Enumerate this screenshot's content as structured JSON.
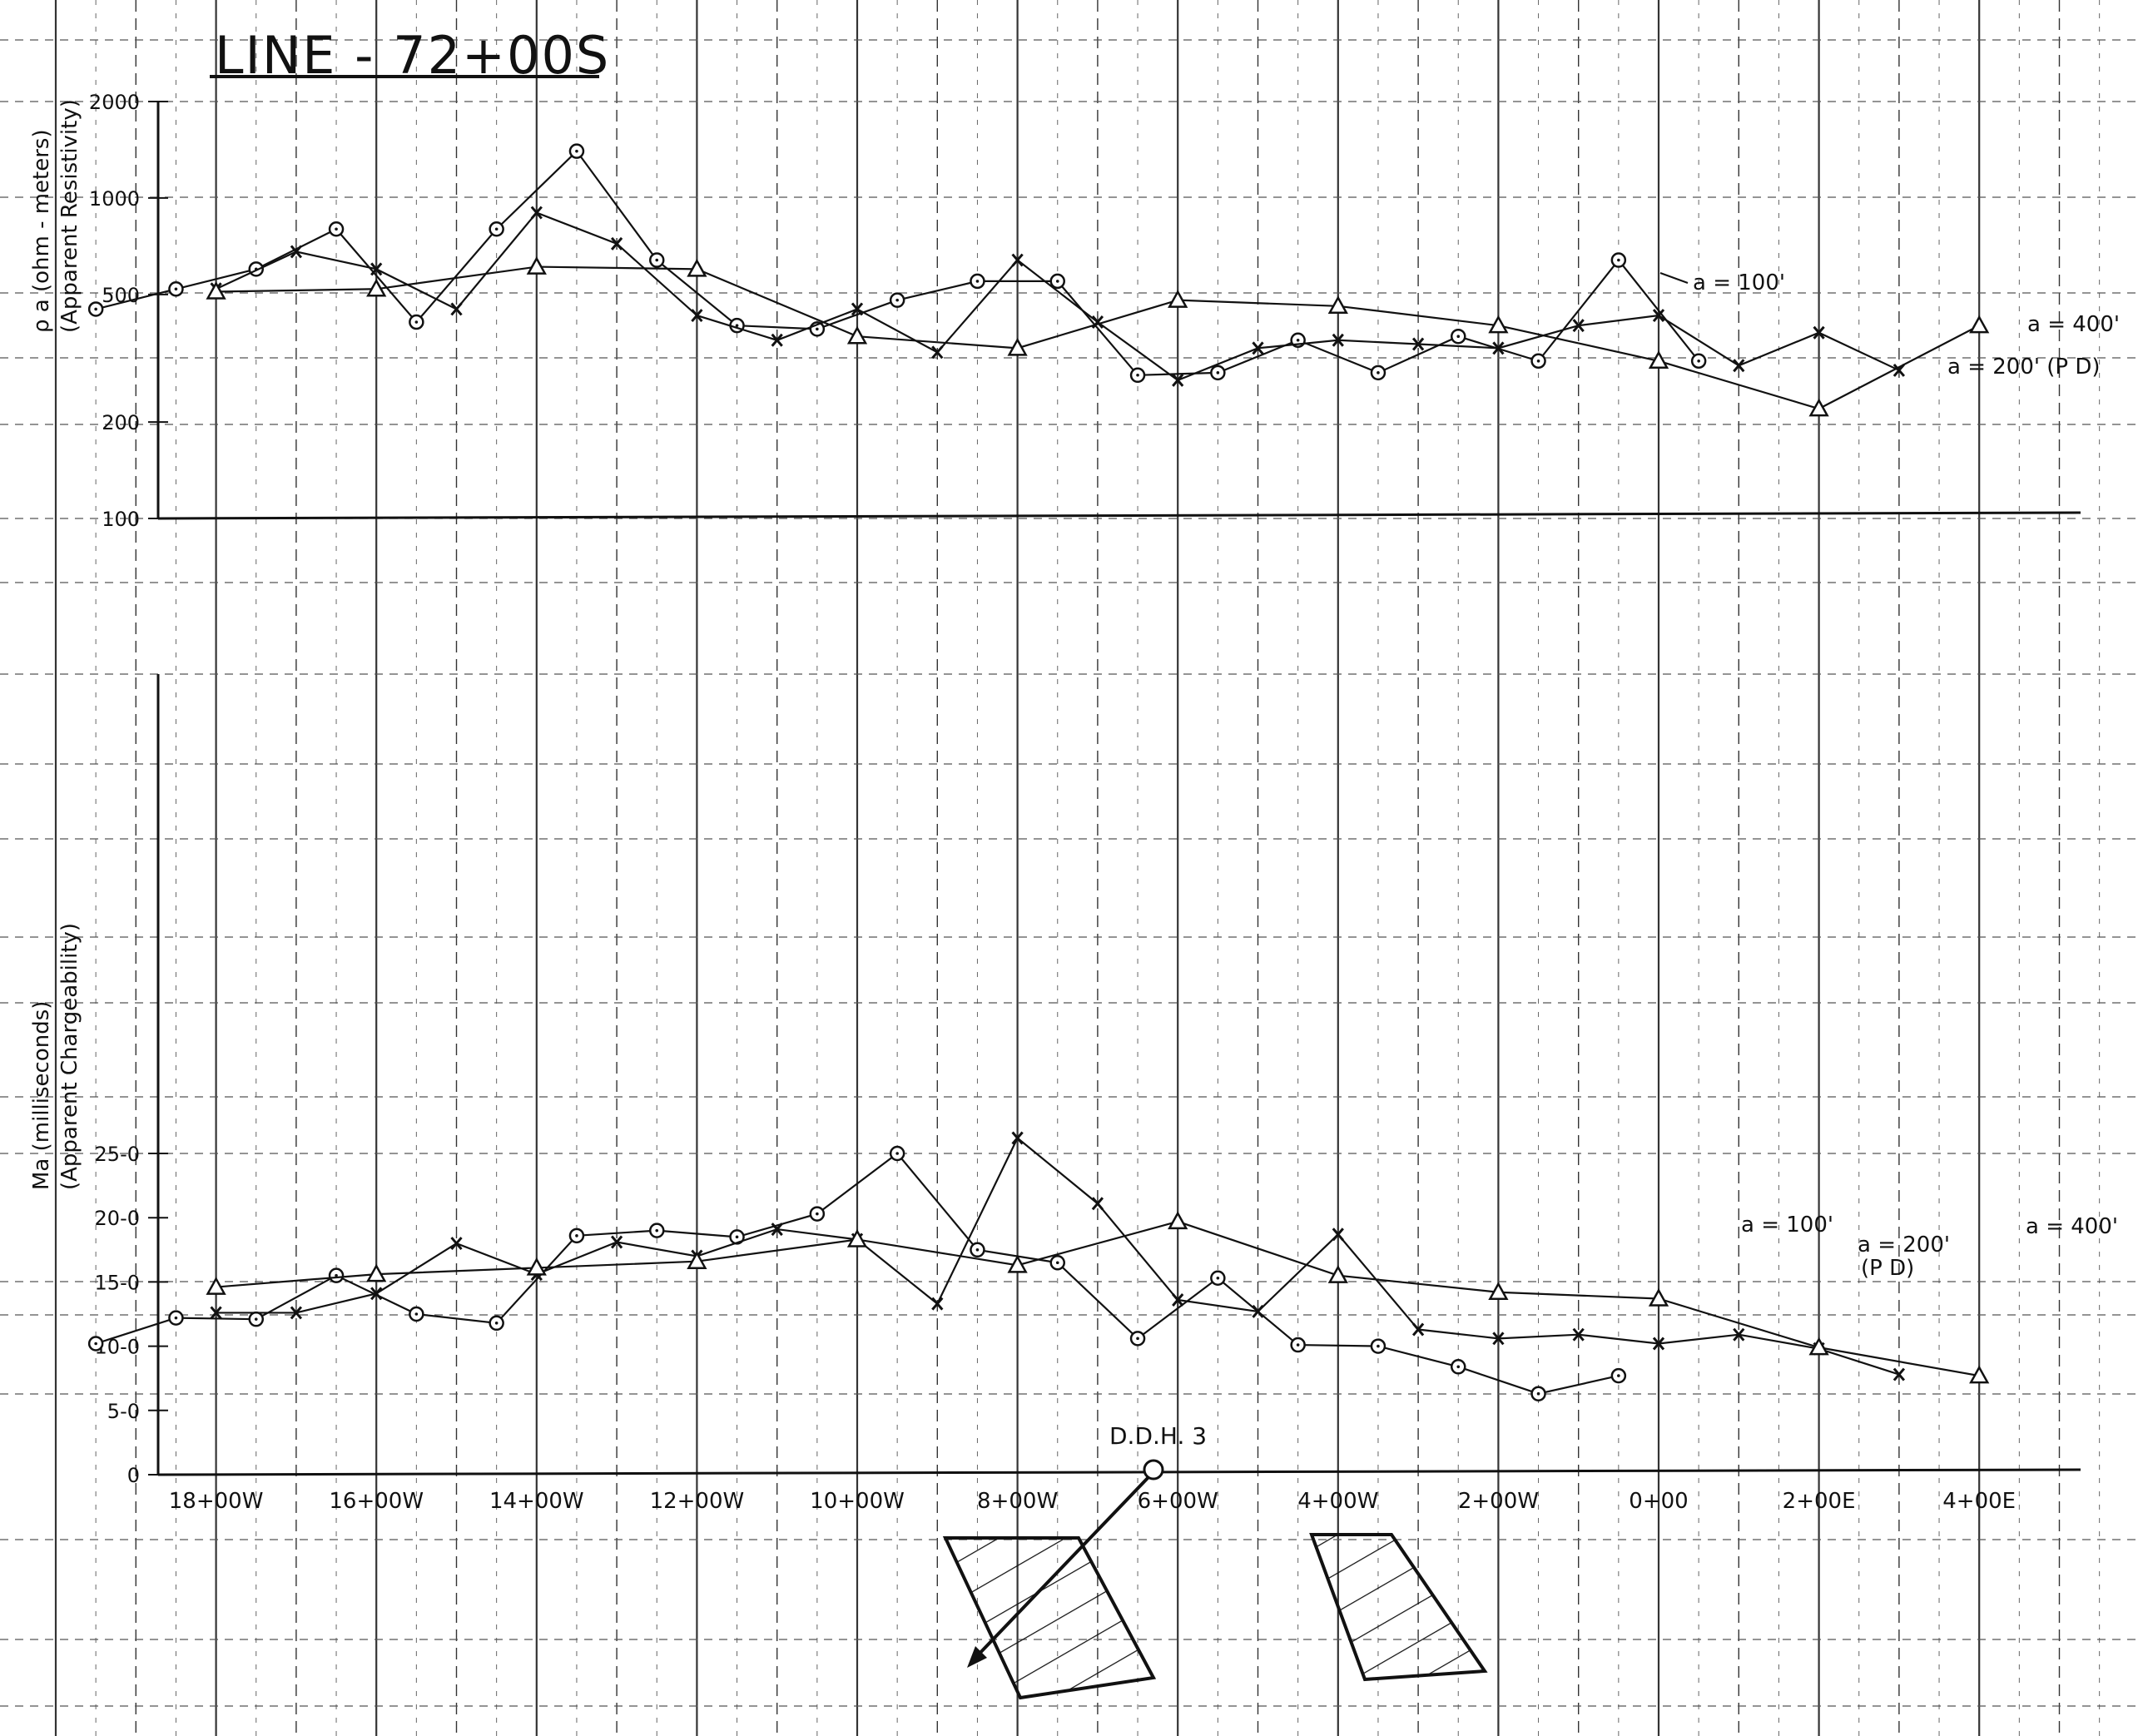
{
  "title": "LINE - 72+00S",
  "x_stations": [
    "18+00W",
    "16+00W",
    "14+00W",
    "12+00W",
    "10+00W",
    "8+00W",
    "6+00W",
    "4+00W",
    "2+00W",
    "0+00",
    "2+00E",
    "4+00E"
  ],
  "drill_hole": "D.D.H. 3",
  "chart_data": [
    {
      "type": "line",
      "ylabel": "ρ a (ohm-meters) (Apparent Resistivity)",
      "yscale": "log",
      "ylim": [
        100,
        2000
      ],
      "yticks": [
        "2000",
        "1000",
        "500",
        "200",
        "100"
      ],
      "grid": true,
      "series": [
        {
          "name": "a = 100'",
          "marker": "circle",
          "x": [
            -19.5,
            -18.5,
            -17.5,
            -16.5,
            -15.5,
            -14.5,
            -13.5,
            -12.5,
            -11.5,
            -10.5,
            -9.5,
            -8.5,
            -7.5,
            -6.5,
            -5.5,
            -4.5,
            -3.5,
            -2.5,
            -1.5,
            -0.5,
            0.5
          ],
          "values": [
            450,
            520,
            600,
            800,
            410,
            800,
            1400,
            640,
            400,
            390,
            480,
            550,
            550,
            280,
            285,
            360,
            285,
            370,
            310,
            640,
            310
          ]
        },
        {
          "name": "a = 200' (P D)",
          "marker": "x",
          "x": [
            -18,
            -17,
            -16,
            -15,
            -14,
            -13,
            -12,
            -11,
            -10,
            -9,
            -8,
            -7,
            -6,
            -5,
            -4,
            -3,
            -2,
            -1,
            0,
            1,
            2,
            3
          ],
          "values": [
            520,
            680,
            600,
            450,
            900,
            720,
            430,
            360,
            450,
            330,
            640,
            410,
            270,
            340,
            360,
            350,
            340,
            400,
            430,
            300,
            380,
            290
          ]
        },
        {
          "name": "a = 400'",
          "marker": "triangle",
          "x": [
            -18,
            -16,
            -14,
            -12,
            -10,
            -8,
            -6,
            -4,
            -2,
            0,
            2,
            4
          ],
          "values": [
            510,
            520,
            610,
            600,
            370,
            340,
            480,
            460,
            400,
            310,
            220,
            400
          ]
        }
      ]
    },
    {
      "type": "line",
      "ylabel": "Ma (milliseconds) (Apparent Chargeability)",
      "ylim": [
        0,
        25
      ],
      "yticks": [
        "25-0",
        "20-0",
        "15-0",
        "10-0",
        "5-0",
        "0"
      ],
      "grid": true,
      "series": [
        {
          "name": "a = 100'",
          "marker": "circle",
          "x": [
            -19.5,
            -18.5,
            -17.5,
            -16.5,
            -15.5,
            -14.5,
            -13.5,
            -12.5,
            -11.5,
            -10.5,
            -9.5,
            -8.5,
            -7.5,
            -6.5,
            -5.5,
            -4.5,
            -3.5,
            -2.5,
            -1.5,
            -0.5,
            0.5
          ],
          "values": [
            10.2,
            12.2,
            12.1,
            15.5,
            12.5,
            11.8,
            18.6,
            19.0,
            18.5,
            20.3,
            25.0,
            17.5,
            16.5,
            10.6,
            15.3,
            10.1,
            10.0,
            8.4,
            6.3,
            7.7,
            null
          ]
        },
        {
          "name": "a = 200' (P D)",
          "marker": "x",
          "x": [
            -18,
            -17,
            -16,
            -15,
            -14,
            -13,
            -12,
            -11,
            -10,
            -9,
            -8,
            -7,
            -6,
            -5,
            -4,
            -3,
            -2,
            -1,
            0,
            1,
            2,
            3
          ],
          "values": [
            12.6,
            12.6,
            14.1,
            18.0,
            15.6,
            18.1,
            17.0,
            19.1,
            18.3,
            13.3,
            26.2,
            21.1,
            13.6,
            12.7,
            18.7,
            11.3,
            10.6,
            10.9,
            10.2,
            10.9,
            9.8,
            7.8
          ]
        },
        {
          "name": "a = 400'",
          "marker": "triangle",
          "x": [
            -18,
            -16,
            -14,
            -12,
            -10,
            -8,
            -6,
            -4,
            -2,
            0,
            2,
            4
          ],
          "values": [
            14.6,
            15.6,
            16.1,
            16.6,
            18.3,
            16.3,
            19.7,
            15.5,
            14.2,
            13.7,
            9.9,
            7.7
          ]
        }
      ]
    }
  ],
  "labels": {
    "top_a100": "a = 100'",
    "top_a400": "a = 400'",
    "top_a200": "a = 200' (P D)",
    "bot_a100": "a = 100'",
    "bot_a200_line1": "a = 200'",
    "bot_a200_line2": "(P D)",
    "bot_a400": "a = 400'",
    "top_ylabel_line1": "ρ a (ohm - meters)",
    "top_ylabel_line2": "(Apparent   Resistivity)",
    "bot_ylabel_line1": "Ma (milliseconds)",
    "bot_ylabel_line2": "(Apparent   Chargeability)"
  }
}
